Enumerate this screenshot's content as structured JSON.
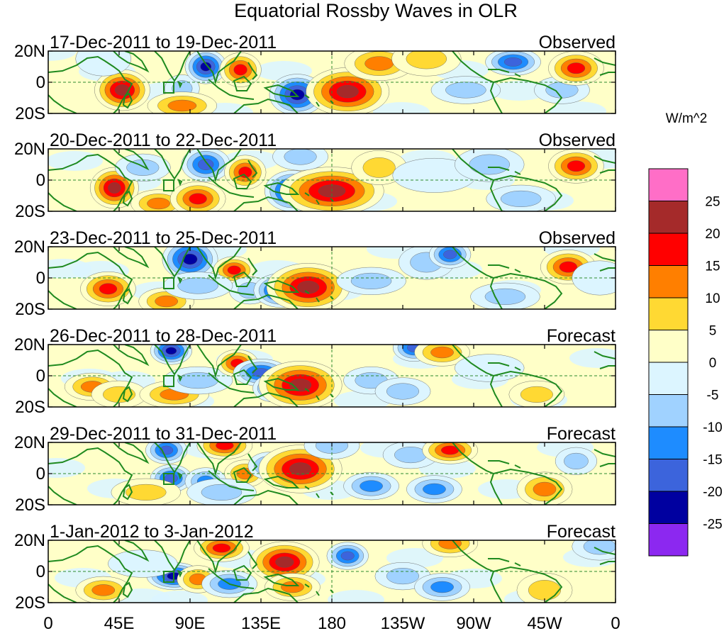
{
  "title": "Equatorial Rossby Waves in OLR",
  "units_label": "W/m^2",
  "panels": [
    {
      "date_range": "17-Dec-2011 to 19-Dec-2011",
      "kind": "Observed"
    },
    {
      "date_range": "20-Dec-2011 to 22-Dec-2011",
      "kind": "Observed"
    },
    {
      "date_range": "23-Dec-2011 to 25-Dec-2011",
      "kind": "Observed"
    },
    {
      "date_range": "26-Dec-2011 to 28-Dec-2011",
      "kind": "Forecast"
    },
    {
      "date_range": "29-Dec-2011 to 31-Dec-2011",
      "kind": "Forecast"
    },
    {
      "date_range": "1-Jan-2012 to 3-Jan-2012",
      "kind": "Forecast"
    }
  ],
  "lat_labels": [
    "20N",
    "0",
    "20S"
  ],
  "lon_labels": [
    "0",
    "45E",
    "90E",
    "135E",
    "180",
    "135W",
    "90W",
    "45W",
    "0"
  ],
  "colorbar": {
    "tick_labels": [
      "25",
      "20",
      "15",
      "10",
      "5",
      "0",
      "-5",
      "-10",
      "-15",
      "-20",
      "-25"
    ],
    "colors": [
      "#ff6ec7",
      "#a52a2a",
      "#ff0000",
      "#ff7f00",
      "#ffd933",
      "#ffffc8",
      "#dcf5ff",
      "#a0d2ff",
      "#1e8cff",
      "#3c64dc",
      "#0000a0",
      "#8c28f0"
    ]
  },
  "blobs": [
    [
      [
        47,
        -5,
        8,
        6,
        25
      ],
      [
        85,
        -4,
        5,
        4,
        -10
      ],
      [
        85,
        -15,
        10,
        4,
        15
      ],
      [
        100,
        10,
        6,
        5,
        -25
      ],
      [
        122,
        8,
        6,
        5,
        20
      ],
      [
        158,
        -8,
        8,
        6,
        -25
      ],
      [
        190,
        -6,
        12,
        7,
        25
      ],
      [
        210,
        12,
        10,
        5,
        15
      ],
      [
        265,
        -5,
        10,
        4,
        -10
      ],
      [
        295,
        13,
        8,
        4,
        -20
      ],
      [
        326,
        -5,
        8,
        4,
        -10
      ],
      [
        335,
        9,
        8,
        5,
        20
      ],
      [
        240,
        15,
        10,
        5,
        10
      ],
      [
        35,
        15,
        8,
        5,
        -5
      ]
    ],
    [
      [
        42,
        -5,
        7,
        6,
        25
      ],
      [
        70,
        -15,
        8,
        4,
        15
      ],
      [
        95,
        -12,
        8,
        5,
        20
      ],
      [
        100,
        10,
        7,
        5,
        -20
      ],
      [
        125,
        5,
        6,
        5,
        20
      ],
      [
        155,
        -7,
        8,
        6,
        -25
      ],
      [
        180,
        -7,
        15,
        7,
        25
      ],
      [
        210,
        8,
        8,
        5,
        10
      ],
      [
        245,
        3,
        12,
        5,
        -5
      ],
      [
        280,
        10,
        10,
        5,
        -10
      ],
      [
        335,
        9,
        8,
        5,
        20
      ],
      [
        60,
        8,
        8,
        4,
        -10
      ],
      [
        160,
        15,
        8,
        4,
        -10
      ],
      [
        300,
        -12,
        10,
        4,
        -10
      ]
    ],
    [
      [
        38,
        -7,
        8,
        5,
        20
      ],
      [
        75,
        -15,
        8,
        4,
        15
      ],
      [
        90,
        12,
        8,
        6,
        -25
      ],
      [
        118,
        5,
        6,
        4,
        20
      ],
      [
        128,
        -8,
        6,
        4,
        -10
      ],
      [
        148,
        -8,
        8,
        5,
        -25
      ],
      [
        165,
        -6,
        12,
        7,
        25
      ],
      [
        95,
        -5,
        10,
        4,
        -10
      ],
      [
        205,
        -2,
        10,
        4,
        -10
      ],
      [
        240,
        10,
        8,
        5,
        -10
      ],
      [
        255,
        15,
        6,
        4,
        -20
      ],
      [
        330,
        7,
        8,
        5,
        20
      ],
      [
        290,
        -12,
        10,
        4,
        -10
      ],
      [
        350,
        0,
        8,
        5,
        -5
      ]
    ],
    [
      [
        28,
        -7,
        8,
        4,
        15
      ],
      [
        45,
        -12,
        8,
        4,
        10
      ],
      [
        78,
        16,
        6,
        4,
        -25
      ],
      [
        80,
        -12,
        10,
        4,
        15
      ],
      [
        95,
        -3,
        10,
        4,
        -10
      ],
      [
        120,
        8,
        6,
        4,
        20
      ],
      [
        135,
        2,
        8,
        4,
        -20
      ],
      [
        143,
        -8,
        6,
        4,
        -20
      ],
      [
        160,
        -6,
        12,
        7,
        25
      ],
      [
        205,
        -3,
        8,
        4,
        -10
      ],
      [
        225,
        -10,
        8,
        4,
        -10
      ],
      [
        232,
        18,
        6,
        4,
        -20
      ],
      [
        250,
        15,
        8,
        4,
        15
      ],
      [
        310,
        -12,
        8,
        4,
        10
      ],
      [
        280,
        5,
        10,
        4,
        -5
      ]
    ],
    [
      [
        75,
        15,
        6,
        4,
        -20
      ],
      [
        78,
        -3,
        6,
        4,
        -20
      ],
      [
        62,
        -12,
        10,
        4,
        10
      ],
      [
        112,
        18,
        8,
        4,
        20
      ],
      [
        100,
        -5,
        6,
        4,
        -15
      ],
      [
        125,
        0,
        6,
        4,
        15
      ],
      [
        140,
        5,
        6,
        4,
        -15
      ],
      [
        160,
        3,
        12,
        7,
        25
      ],
      [
        180,
        18,
        8,
        4,
        -10
      ],
      [
        205,
        -8,
        8,
        4,
        -15
      ],
      [
        230,
        12,
        8,
        4,
        -10
      ],
      [
        245,
        -10,
        8,
        4,
        -15
      ],
      [
        255,
        15,
        8,
        4,
        20
      ],
      [
        315,
        -10,
        8,
        5,
        15
      ],
      [
        335,
        8,
        6,
        4,
        -10
      ],
      [
        110,
        -12,
        10,
        4,
        -10
      ]
    ],
    [
      [
        80,
        -3,
        8,
        4,
        -25
      ],
      [
        95,
        -5,
        6,
        4,
        15
      ],
      [
        35,
        -12,
        8,
        4,
        15
      ],
      [
        110,
        15,
        8,
        4,
        20
      ],
      [
        115,
        -8,
        8,
        4,
        -15
      ],
      [
        150,
        6,
        10,
        6,
        25
      ],
      [
        155,
        -10,
        8,
        4,
        15
      ],
      [
        190,
        10,
        6,
        4,
        -20
      ],
      [
        225,
        -3,
        8,
        4,
        -10
      ],
      [
        250,
        -10,
        8,
        4,
        -15
      ],
      [
        255,
        18,
        8,
        4,
        15
      ],
      [
        315,
        -12,
        8,
        5,
        10
      ],
      [
        350,
        16,
        8,
        4,
        -10
      ],
      [
        60,
        5,
        10,
        4,
        -5
      ]
    ]
  ]
}
